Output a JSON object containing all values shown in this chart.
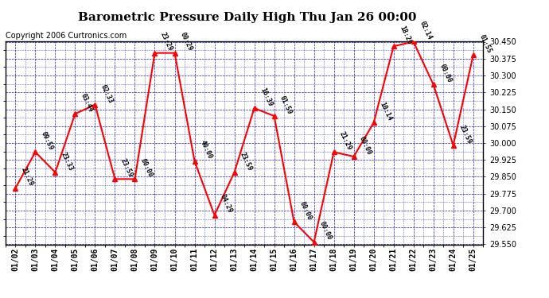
{
  "title": "Barometric Pressure Daily High Thu Jan 26 00:00",
  "copyright": "Copyright 2006 Curtronics.com",
  "x_labels": [
    "01/02",
    "01/03",
    "01/04",
    "01/05",
    "01/06",
    "01/07",
    "01/08",
    "01/09",
    "01/10",
    "01/11",
    "01/12",
    "01/13",
    "01/14",
    "01/15",
    "01/16",
    "01/17",
    "01/18",
    "01/19",
    "01/20",
    "01/21",
    "01/22",
    "01/23",
    "01/24",
    "01/25"
  ],
  "y_values": [
    29.8,
    29.96,
    29.87,
    30.13,
    30.17,
    29.84,
    29.84,
    30.4,
    30.4,
    29.92,
    29.68,
    29.87,
    30.155,
    30.12,
    29.65,
    29.56,
    29.96,
    29.94,
    30.09,
    30.43,
    30.45,
    30.26,
    29.99,
    30.39
  ],
  "point_labels": [
    "21:29",
    "09:59",
    "23:33",
    "03:44",
    "02:33",
    "23:59",
    "00:00",
    "23:29",
    "00:29",
    "40:00",
    "04:29",
    "23:59",
    "16:39",
    "01:59",
    "00:00",
    "00:00",
    "21:29",
    "00:00",
    "10:14",
    "18:26",
    "02:14",
    "00:00",
    "23:59",
    "01:55"
  ],
  "ylim_min": 29.55,
  "ylim_max": 30.45,
  "y_tick_interval": 0.075,
  "line_color": "red",
  "marker_color": "red",
  "grid_color": "#0000cc",
  "plot_bg": "#ffffff",
  "fig_bg": "#ffffff",
  "border_color": "black",
  "title_fontsize": 11,
  "tick_fontsize": 7,
  "copyright_fontsize": 7,
  "point_label_fontsize": 6
}
